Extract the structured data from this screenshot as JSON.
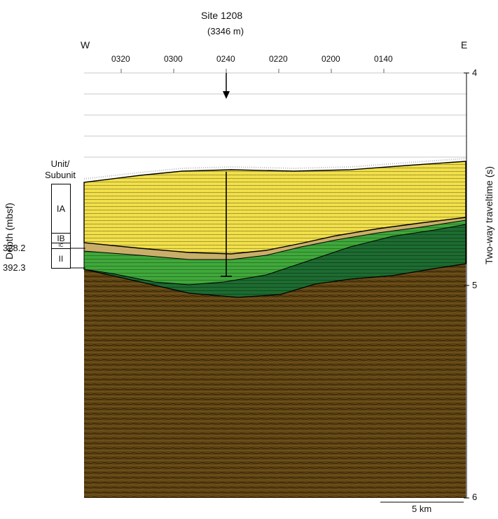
{
  "site": {
    "name": "Site 1208",
    "water_depth": "(3346 m)"
  },
  "directions": {
    "west": "W",
    "east": "E"
  },
  "shotpoints": [
    "0320",
    "0300",
    "0240",
    "0220",
    "0200",
    "0140"
  ],
  "traveltime": {
    "axis_label": "Two-way traveltime (s)",
    "ticks": [
      "4",
      "5",
      "6"
    ]
  },
  "units": {
    "header_line1": "Unit/",
    "header_line2": "Subunit",
    "items": [
      {
        "label": "IA",
        "color": "#f2e04a"
      },
      {
        "label": "IB",
        "color": "#c9ae6a"
      },
      {
        "label": "IC",
        "color": "#3fa83a"
      },
      {
        "label": "II",
        "color": "#1d6b30"
      }
    ],
    "basement_color": "#5e4312"
  },
  "depth": {
    "axis_label": "Depth (mbsf)",
    "values": [
      "328.2",
      "392.3"
    ]
  },
  "scale_bar": {
    "label": "5 km"
  }
}
